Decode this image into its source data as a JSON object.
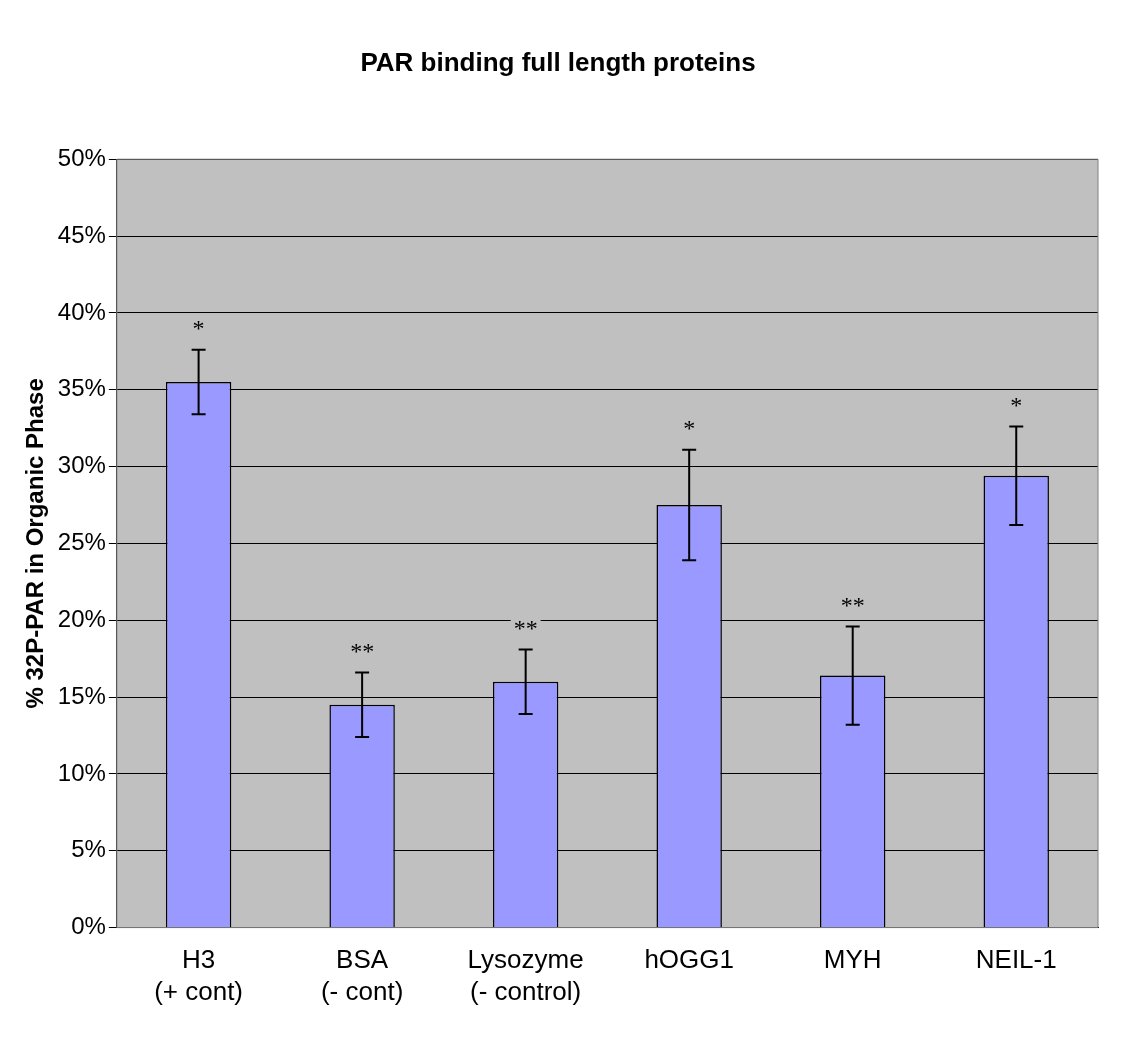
{
  "chart_data": {
    "type": "bar",
    "title": "PAR binding full length proteins",
    "ylabel": "% 32P-PAR in Organic Phase",
    "categories": [
      "H3\n(+ cont)",
      "BSA\n(- cont)",
      "Lysozyme\n(- control)",
      "hOGG1",
      "MYH",
      "NEIL-1"
    ],
    "values": [
      35.5,
      14.5,
      16.0,
      27.5,
      16.4,
      29.4
    ],
    "errors": [
      2.1,
      2.1,
      2.1,
      3.6,
      3.2,
      3.2
    ],
    "color": "#9999ff",
    "ylim": [
      0,
      50
    ],
    "yticks": [
      {
        "value": 0,
        "label": "0%"
      },
      {
        "value": 5,
        "label": "5%"
      },
      {
        "value": 10,
        "label": "10%"
      },
      {
        "value": 15,
        "label": "15%"
      },
      {
        "value": 20,
        "label": "20%"
      },
      {
        "value": 25,
        "label": "25%"
      },
      {
        "value": 30,
        "label": "30%"
      },
      {
        "value": 35,
        "label": "35%"
      },
      {
        "value": 40,
        "label": "40%"
      },
      {
        "value": 45,
        "label": "45%"
      },
      {
        "value": 50,
        "label": "50%"
      }
    ],
    "grid": "y",
    "legend": false,
    "annotations": [
      "*",
      "**",
      "**",
      "*",
      "**",
      "*"
    ]
  }
}
